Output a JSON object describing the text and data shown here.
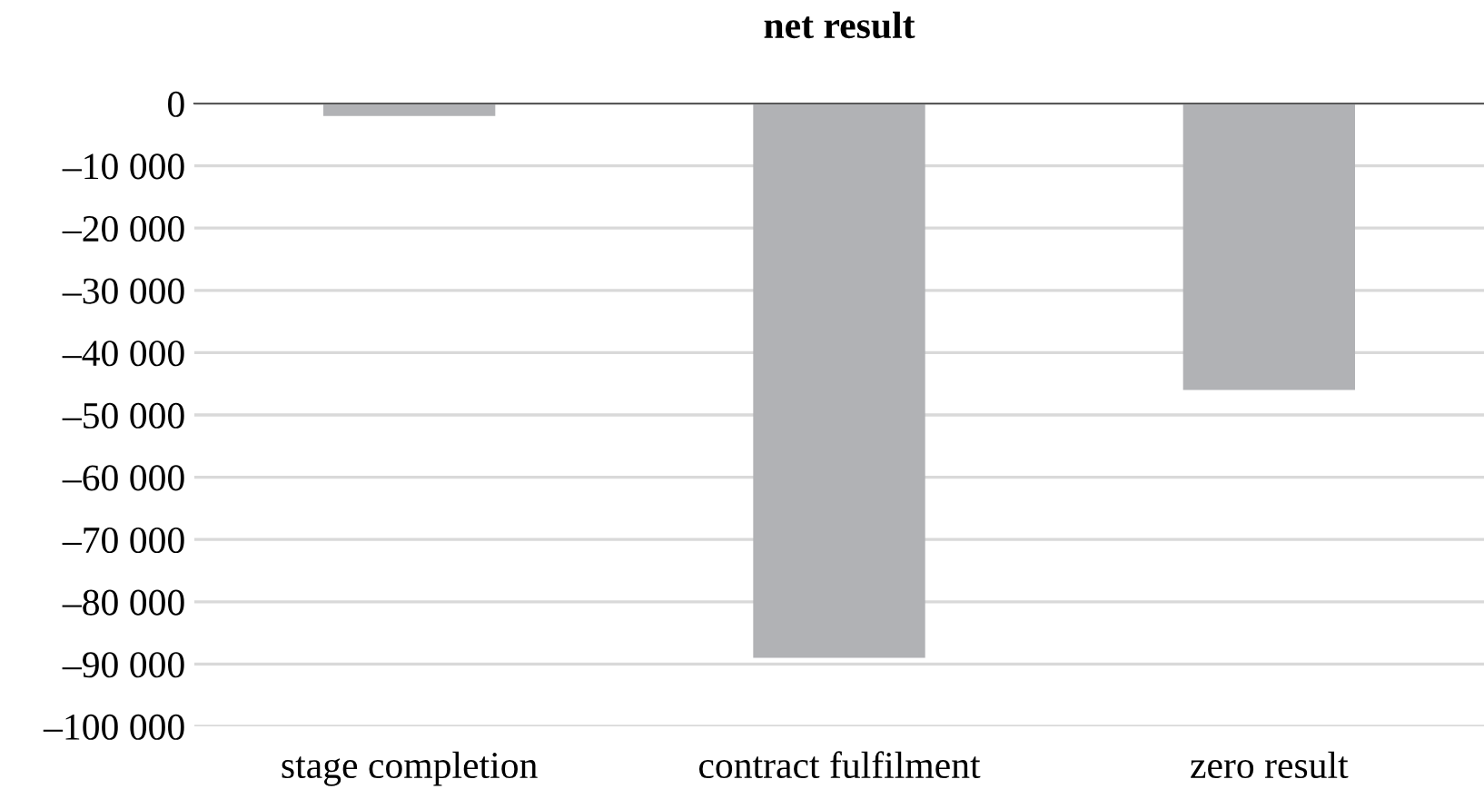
{
  "chart_data": {
    "type": "bar",
    "title": "net result",
    "categories": [
      "stage completion",
      "contract fulfilment",
      "zero result"
    ],
    "values": [
      -2000,
      -89000,
      -46000
    ],
    "color": "#b1b2b5",
    "ylim": [
      -100000,
      0
    ],
    "yticks": [
      {
        "value": 0,
        "label": "0"
      },
      {
        "value": -10000,
        "label": "–10 000"
      },
      {
        "value": -20000,
        "label": "–20 000"
      },
      {
        "value": -30000,
        "label": "–30 000"
      },
      {
        "value": -40000,
        "label": "–40 000"
      },
      {
        "value": -50000,
        "label": "–50 000"
      },
      {
        "value": -60000,
        "label": "–60 000"
      },
      {
        "value": -70000,
        "label": "–70 000"
      },
      {
        "value": -80000,
        "label": "–80 000"
      },
      {
        "value": -90000,
        "label": "–90 000"
      },
      {
        "value": -100000,
        "label": "–100 000"
      }
    ],
    "grid": "y"
  }
}
